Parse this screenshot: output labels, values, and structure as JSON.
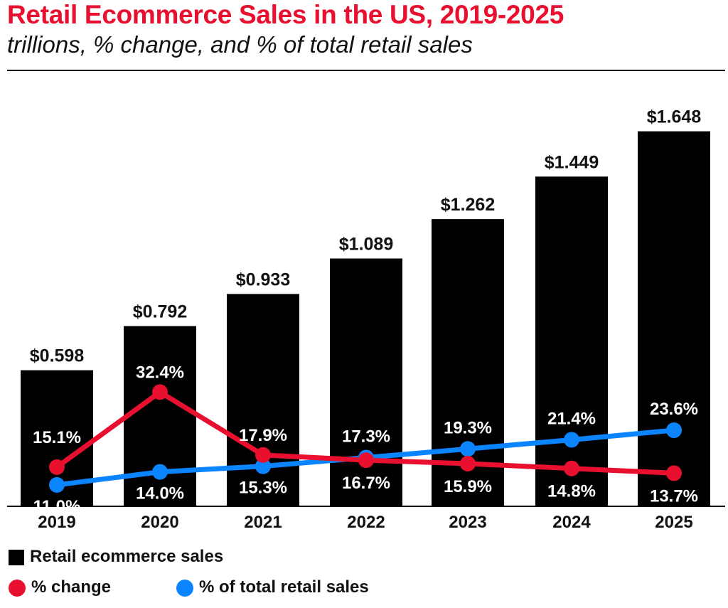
{
  "title": "Retail Ecommerce Sales in the US, 2019-2025",
  "subtitle": "trillions, % change, and % of total retail sales",
  "colors": {
    "title": "#e8102e",
    "bar": "#000000",
    "change": "#e8102e",
    "share": "#0a84ff"
  },
  "legend": {
    "bars": "Retail ecommerce sales",
    "change": "% change",
    "share": "% of total retail sales"
  },
  "chart_data": {
    "type": "bar",
    "categories": [
      "2019",
      "2020",
      "2021",
      "2022",
      "2023",
      "2024",
      "2025"
    ],
    "series": [
      {
        "name": "Retail ecommerce sales",
        "type": "bar",
        "values": [
          0.598,
          0.792,
          0.933,
          1.089,
          1.262,
          1.449,
          1.648
        ],
        "labels": [
          "$0.598",
          "$0.792",
          "$0.933",
          "$1.089",
          "$1.262",
          "$1.449",
          "$1.648"
        ]
      },
      {
        "name": "% change",
        "type": "line",
        "values": [
          15.1,
          32.4,
          17.9,
          16.7,
          15.9,
          14.8,
          13.7
        ],
        "labels": [
          "15.1%",
          "32.4%",
          "17.9%",
          "16.7%",
          "15.9%",
          "14.8%",
          "13.7%"
        ]
      },
      {
        "name": "% of total retail sales",
        "type": "line",
        "values": [
          11.0,
          14.0,
          15.3,
          17.3,
          19.3,
          21.4,
          23.6
        ],
        "labels": [
          "11.0%",
          "14.0%",
          "15.3%",
          "17.3%",
          "19.3%",
          "21.4%",
          "23.6%"
        ]
      }
    ],
    "legend_position": "bottom-left",
    "grid": false
  }
}
